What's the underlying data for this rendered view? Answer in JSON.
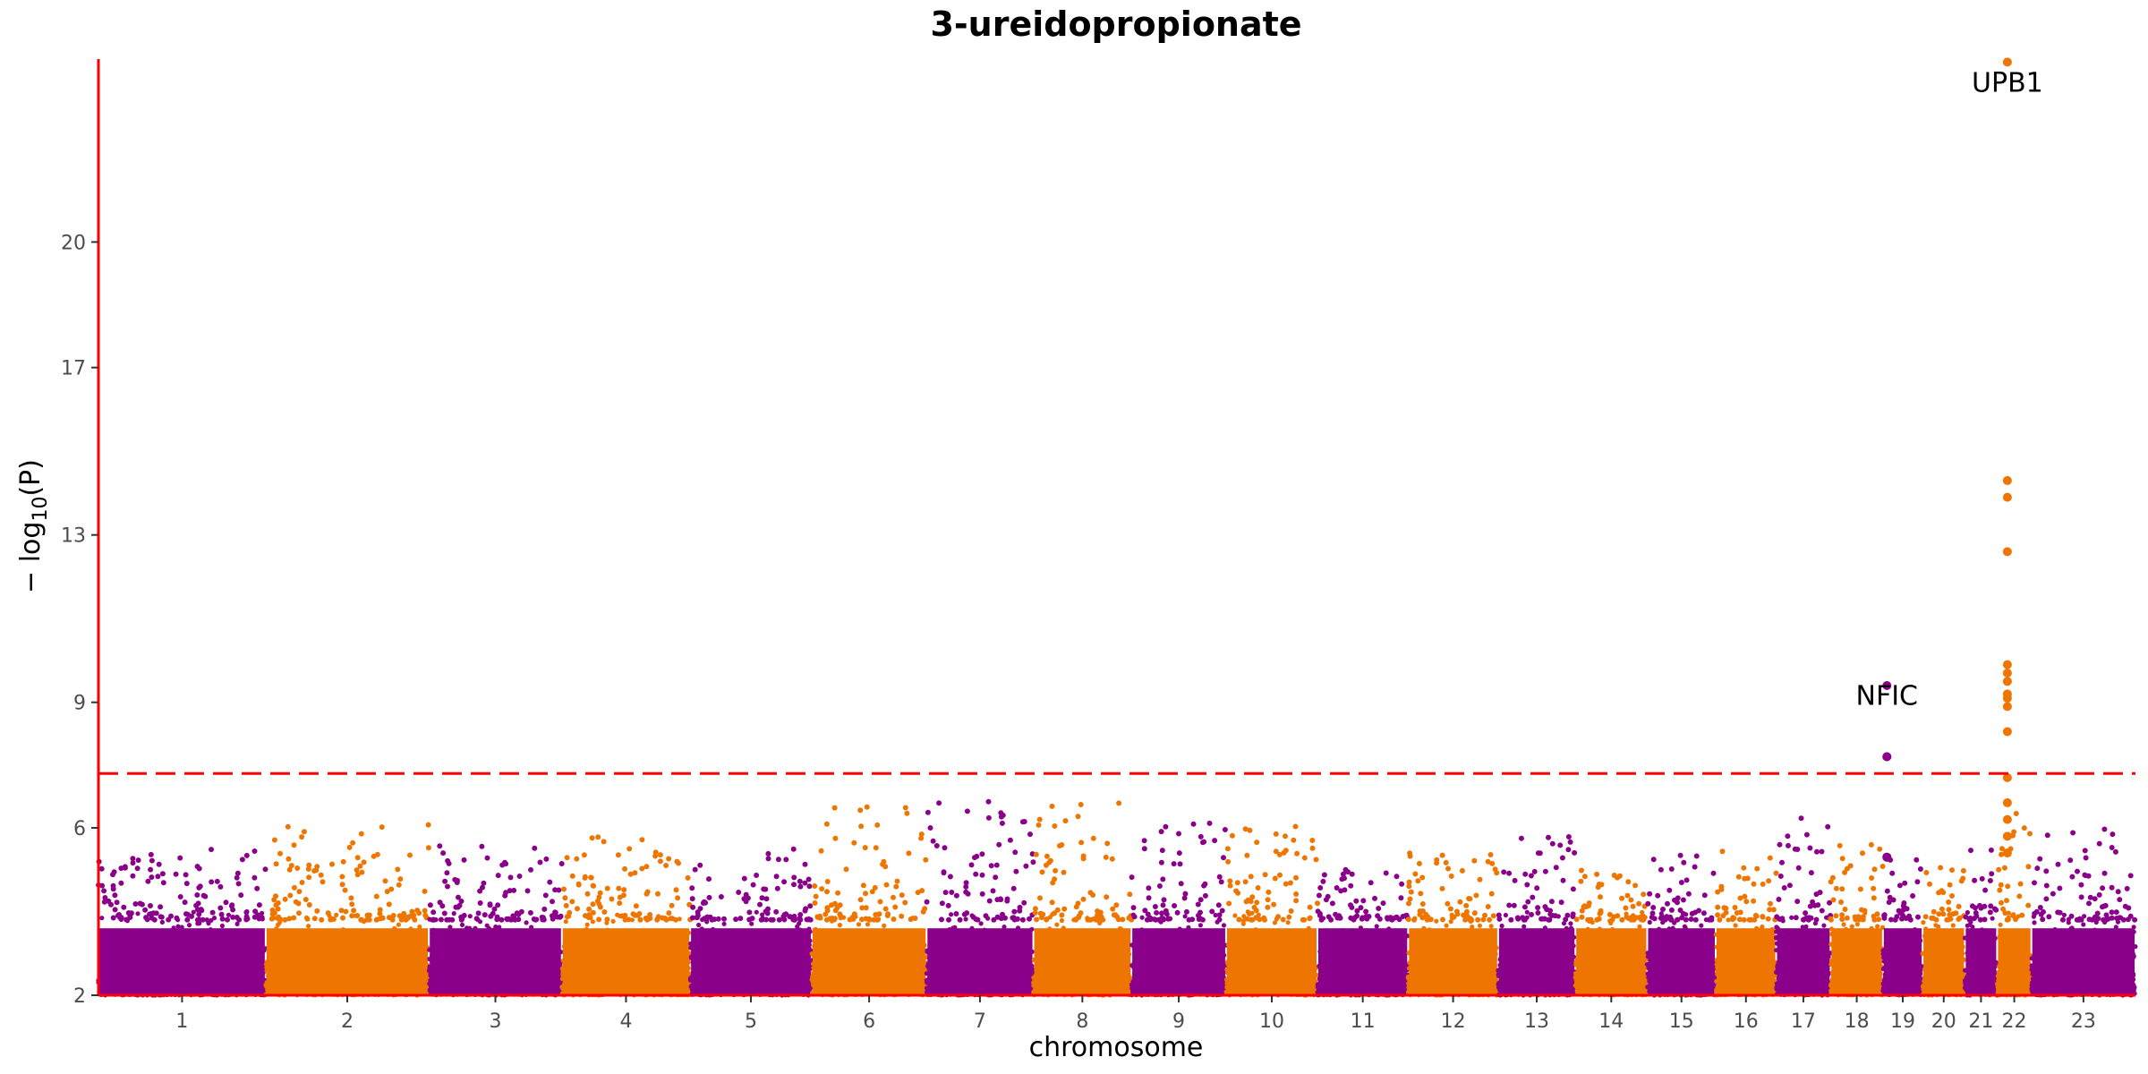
{
  "chart_data": {
    "type": "scatter",
    "subtype": "manhattan",
    "title": "3-ureidopropionate",
    "xlabel": "chromosome",
    "ylabel": "−log10(P)",
    "ylabel_parts": {
      "prefix": "− log",
      "subscript": "10",
      "suffix": "(P)"
    },
    "ylim": [
      2,
      24.5
    ],
    "yticks": [
      2,
      6,
      9,
      13,
      17,
      20
    ],
    "grid": false,
    "legend": "none",
    "significance_line": {
      "y": 7.3,
      "color": "#ff0000",
      "style": "dashed"
    },
    "axis_color": "#ff0000",
    "colors": {
      "odd": "#8b008b",
      "even": "#ee7600"
    },
    "chromosomes": [
      {
        "label": "1",
        "length": 249
      },
      {
        "label": "2",
        "length": 243
      },
      {
        "label": "3",
        "length": 198
      },
      {
        "label": "4",
        "length": 191
      },
      {
        "label": "5",
        "length": 181
      },
      {
        "label": "6",
        "length": 171
      },
      {
        "label": "7",
        "length": 159
      },
      {
        "label": "8",
        "length": 146
      },
      {
        "label": "9",
        "length": 141
      },
      {
        "label": "10",
        "length": 136
      },
      {
        "label": "11",
        "length": 135
      },
      {
        "label": "12",
        "length": 134
      },
      {
        "label": "13",
        "length": 115
      },
      {
        "label": "14",
        "length": 107
      },
      {
        "label": "15",
        "length": 102
      },
      {
        "label": "16",
        "length": 90
      },
      {
        "label": "17",
        "length": 81
      },
      {
        "label": "18",
        "length": 78
      },
      {
        "label": "19",
        "length": 59
      },
      {
        "label": "20",
        "length": 63
      },
      {
        "label": "21",
        "length": 48
      },
      {
        "label": "22",
        "length": 51
      },
      {
        "label": "23",
        "length": 155
      }
    ],
    "chromosome_peaks": [
      5.5,
      6.1,
      5.8,
      5.8,
      5.5,
      6.5,
      7.0,
      6.7,
      6.2,
      6.1,
      5.0,
      5.4,
      5.8,
      5.3,
      5.4,
      5.5,
      6.3,
      5.6,
      5.3,
      5.3,
      5.5,
      6.5,
      6.0
    ],
    "hits": [
      {
        "chr": "22",
        "pos": 0.3,
        "values": [
          24.3,
          14.3,
          13.9,
          12.6,
          9.9,
          9.7,
          9.5,
          9.2,
          9.1,
          8.9,
          8.3,
          7.2,
          6.6,
          6.2,
          5.8,
          5.4
        ]
      },
      {
        "chr": "19",
        "pos": 0.1,
        "values": [
          9.4,
          7.7,
          7.7,
          5.3,
          5.3
        ]
      }
    ],
    "annotations": [
      {
        "text": "UPB1",
        "chr": "22",
        "pos": 0.3,
        "y": 23.8
      },
      {
        "text": "NFIC",
        "chr": "19",
        "pos": 0.1,
        "y": 9.15
      }
    ]
  }
}
